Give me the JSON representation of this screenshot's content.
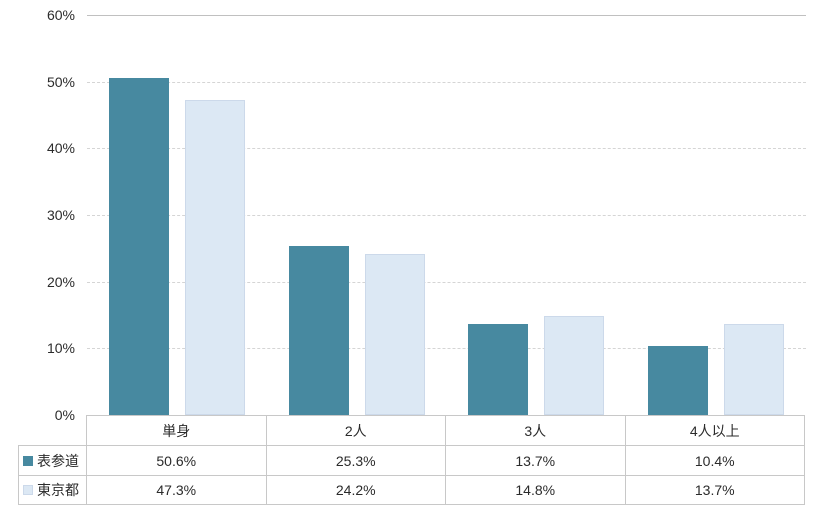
{
  "chart_data": {
    "type": "bar",
    "categories": [
      "単身",
      "2人",
      "3人",
      "4人以上"
    ],
    "series": [
      {
        "name": "表参道",
        "color": "#4789a0",
        "values": [
          50.6,
          25.3,
          13.7,
          10.4
        ],
        "value_labels": [
          "50.6%",
          "25.3%",
          "13.7%",
          "10.4%"
        ]
      },
      {
        "name": "東京都",
        "color": "#dce8f4",
        "values": [
          47.3,
          24.2,
          14.8,
          13.7
        ],
        "value_labels": [
          "47.3%",
          "24.2%",
          "14.8%",
          "13.7%"
        ]
      }
    ],
    "ylim": [
      0,
      60
    ],
    "ytick_step": 10,
    "ytick_labels": [
      "0%",
      "10%",
      "20%",
      "30%",
      "40%",
      "50%",
      "60%"
    ],
    "grid": true,
    "legend_position": "table-left"
  },
  "colors": {
    "series_1": "#4789a0",
    "series_2": "#dce8f4",
    "light_bar_border": "#ccd9ea",
    "gridline_dashed": "#d5d5d5",
    "gridline_top_solid": "#c0c0c0",
    "table_border": "#c8c8c8",
    "text": "#2b2b2b",
    "background": "#ffffff"
  }
}
